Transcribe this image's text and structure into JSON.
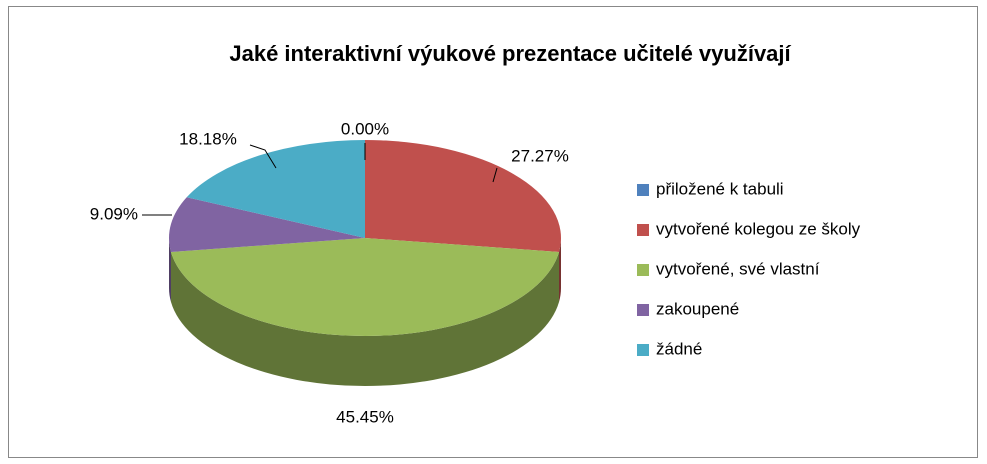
{
  "chart_data": {
    "type": "pie",
    "title": "Jaké interaktivní výukové prezentace učitelé využívají",
    "categories": [
      "přiložené k tabuli",
      "vytvořené kolegou ze školy",
      "vytvořené, své vlastní",
      "zakoupené",
      "žádné"
    ],
    "values": [
      0,
      27.27,
      45.45,
      9.09,
      18.18
    ],
    "value_labels": [
      "0.00%",
      "27.27%",
      "45.45%",
      "9.09%",
      "18.18%"
    ],
    "colors": [
      "#4f81bd",
      "#c0504d",
      "#9bbb59",
      "#8064a2",
      "#4bacc6"
    ],
    "legend": "right"
  }
}
